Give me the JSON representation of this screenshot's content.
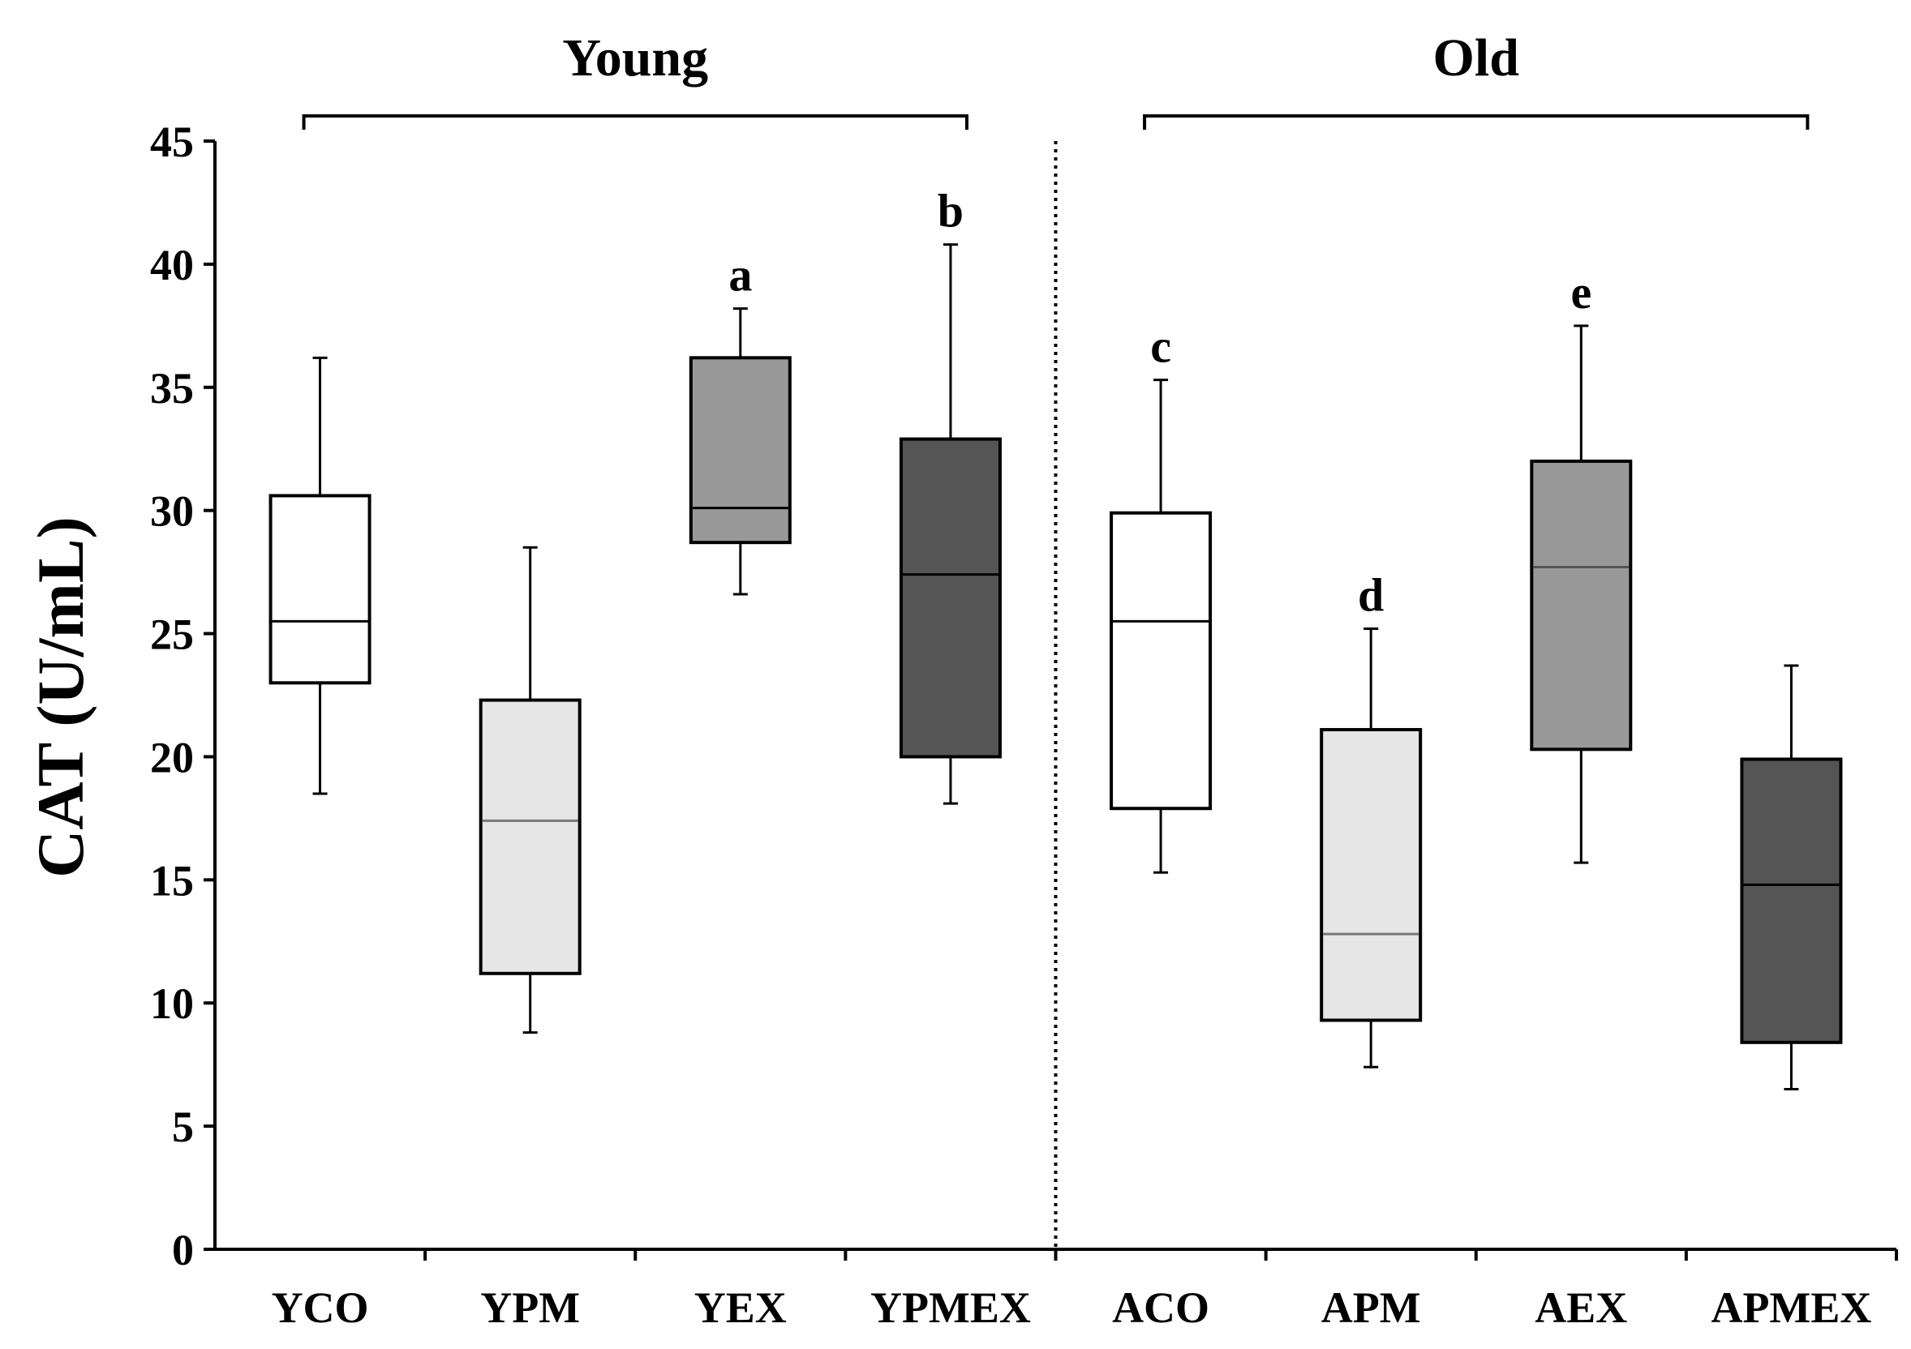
{
  "chart_data": {
    "type": "boxplot",
    "ylabel": "CAT (U/mL)",
    "ylim": [
      0,
      45
    ],
    "yticks": [
      "0",
      "5",
      "10",
      "15",
      "20",
      "25",
      "30",
      "35",
      "40",
      "45"
    ],
    "categories": [
      "YCO",
      "YPM",
      "YEX",
      "YPMEX",
      "ACO",
      "APM",
      "AEX",
      "APMEX"
    ],
    "groups": [
      {
        "label": "Young",
        "members": [
          "YCO",
          "YPM",
          "YEX",
          "YPMEX"
        ]
      },
      {
        "label": "Old",
        "members": [
          "ACO",
          "APM",
          "AEX",
          "APMEX"
        ]
      }
    ],
    "boxes": [
      {
        "category": "YCO",
        "min": 18.5,
        "q1": 23.0,
        "median": 25.5,
        "q3": 30.6,
        "max": 36.2,
        "fill": "#ffffff",
        "median_color": "#000000",
        "letter": ""
      },
      {
        "category": "YPM",
        "min": 8.8,
        "q1": 11.2,
        "median": 17.4,
        "q3": 22.3,
        "max": 28.5,
        "fill": "#e6e6e6",
        "median_color": "#777777",
        "letter": ""
      },
      {
        "category": "YEX",
        "min": 26.6,
        "q1": 28.7,
        "median": 30.1,
        "q3": 36.2,
        "max": 38.2,
        "fill": "#999999",
        "median_color": "#000000",
        "letter": "a"
      },
      {
        "category": "YPMEX",
        "min": 18.1,
        "q1": 20.0,
        "median": 27.4,
        "q3": 32.9,
        "max": 40.8,
        "fill": "#555555",
        "median_color": "#000000",
        "letter": "b"
      },
      {
        "category": "ACO",
        "min": 15.3,
        "q1": 17.9,
        "median": 25.5,
        "q3": 29.9,
        "max": 35.3,
        "fill": "#ffffff",
        "median_color": "#000000",
        "letter": "c"
      },
      {
        "category": "APM",
        "min": 7.4,
        "q1": 9.3,
        "median": 12.8,
        "q3": 21.1,
        "max": 25.2,
        "fill": "#e6e6e6",
        "median_color": "#777777",
        "letter": "d"
      },
      {
        "category": "AEX",
        "min": 15.7,
        "q1": 20.3,
        "median": 27.7,
        "q3": 32.0,
        "max": 37.5,
        "fill": "#999999",
        "median_color": "#555555",
        "letter": "e"
      },
      {
        "category": "APMEX",
        "min": 6.5,
        "q1": 8.4,
        "median": 14.8,
        "q3": 19.9,
        "max": 23.7,
        "fill": "#555555",
        "median_color": "#000000",
        "letter": ""
      }
    ],
    "divider": "dotted line between YPMEX and ACO",
    "grid": false,
    "legend": "none"
  }
}
